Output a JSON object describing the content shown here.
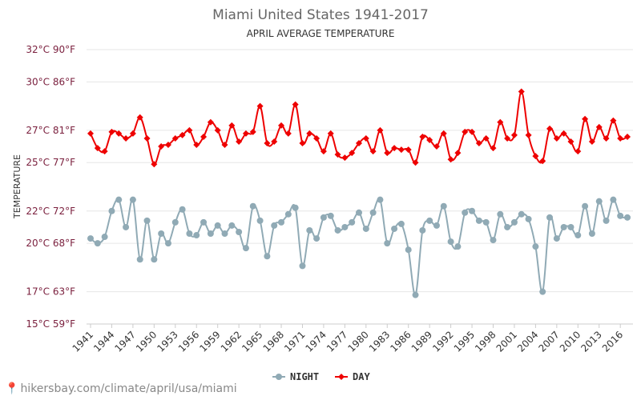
{
  "chart_data": {
    "type": "line",
    "title": "Miami United States 1941-2017",
    "subtitle": "APRIL AVERAGE TEMPERATURE",
    "ylabel": "TEMPERATURE",
    "ylim": [
      15,
      32
    ],
    "yticks": [
      {
        "value": 15,
        "label": "15°C 59°F"
      },
      {
        "value": 17,
        "label": "17°C 63°F"
      },
      {
        "value": 20,
        "label": "20°C 68°F"
      },
      {
        "value": 22,
        "label": "22°C 72°F"
      },
      {
        "value": 25,
        "label": "25°C 77°F"
      },
      {
        "value": 27,
        "label": "27°C 81°F"
      },
      {
        "value": 30,
        "label": "30°C 86°F"
      },
      {
        "value": 32,
        "label": "32°C 90°F"
      }
    ],
    "xlim": [
      1941,
      2017
    ],
    "xticks": [
      1941,
      1944,
      1947,
      1950,
      1953,
      1956,
      1959,
      1962,
      1965,
      1968,
      1971,
      1974,
      1977,
      1980,
      1983,
      1986,
      1989,
      1992,
      1995,
      1998,
      2001,
      2004,
      2007,
      2010,
      2013,
      2016
    ],
    "grid": true,
    "legend_position": "bottom-center",
    "series": [
      {
        "name": "NIGHT",
        "color": "#90aab5",
        "marker": "circle",
        "x": [
          1941,
          1942,
          1943,
          1944,
          1945,
          1946,
          1947,
          1948,
          1949,
          1950,
          1951,
          1952,
          1953,
          1954,
          1955,
          1956,
          1957,
          1958,
          1959,
          1960,
          1961,
          1962,
          1963,
          1964,
          1965,
          1966,
          1967,
          1968,
          1969,
          1970,
          1971,
          1972,
          1973,
          1974,
          1975,
          1976,
          1977,
          1978,
          1979,
          1980,
          1981,
          1982,
          1983,
          1984,
          1985,
          1986,
          1987,
          1988,
          1989,
          1990,
          1991,
          1992,
          1993,
          1994,
          1995,
          1996,
          1997,
          1998,
          1999,
          2000,
          2001,
          2002,
          2003,
          2004,
          2005,
          2006,
          2007,
          2008,
          2009,
          2010,
          2011,
          2012,
          2013,
          2014,
          2015,
          2016,
          2017
        ],
        "values": [
          20.3,
          20.0,
          20.4,
          22.0,
          22.7,
          21.0,
          22.7,
          19.0,
          21.4,
          19.0,
          20.6,
          20.0,
          21.3,
          22.1,
          20.6,
          20.5,
          21.3,
          20.6,
          21.1,
          20.6,
          21.1,
          20.7,
          19.7,
          22.3,
          21.4,
          19.2,
          21.1,
          21.3,
          21.8,
          22.2,
          18.6,
          20.8,
          20.3,
          21.6,
          21.7,
          20.8,
          21.0,
          21.3,
          21.9,
          20.9,
          21.9,
          22.7,
          20.0,
          20.9,
          21.2,
          19.6,
          16.8,
          20.8,
          21.4,
          21.1,
          22.3,
          20.1,
          19.8,
          21.9,
          22.0,
          21.4,
          21.3,
          20.2,
          21.8,
          21.0,
          21.3,
          21.8,
          21.5,
          19.8,
          17.0,
          21.6,
          20.3,
          21.0,
          21.0,
          20.5,
          22.3,
          20.6,
          22.6,
          21.4,
          22.7,
          21.7,
          21.6
        ]
      },
      {
        "name": "DAY",
        "color": "#ee0000",
        "marker": "diamond",
        "x": [
          1941,
          1942,
          1943,
          1944,
          1945,
          1946,
          1947,
          1948,
          1949,
          1950,
          1951,
          1952,
          1953,
          1954,
          1955,
          1956,
          1957,
          1958,
          1959,
          1960,
          1961,
          1962,
          1963,
          1964,
          1965,
          1966,
          1967,
          1968,
          1969,
          1970,
          1971,
          1972,
          1973,
          1974,
          1975,
          1976,
          1977,
          1978,
          1979,
          1980,
          1981,
          1982,
          1983,
          1984,
          1985,
          1986,
          1987,
          1988,
          1989,
          1990,
          1991,
          1992,
          1993,
          1994,
          1995,
          1996,
          1997,
          1998,
          1999,
          2000,
          2001,
          2002,
          2003,
          2004,
          2005,
          2006,
          2007,
          2008,
          2009,
          2010,
          2011,
          2012,
          2013,
          2014,
          2015,
          2016,
          2017
        ],
        "values": [
          26.8,
          25.9,
          25.7,
          26.9,
          26.8,
          26.5,
          26.8,
          27.8,
          26.5,
          24.9,
          26.0,
          26.1,
          26.5,
          26.7,
          27.0,
          26.1,
          26.6,
          27.5,
          27.0,
          26.1,
          27.3,
          26.3,
          26.8,
          26.9,
          28.5,
          26.2,
          26.3,
          27.3,
          26.8,
          28.6,
          26.2,
          26.8,
          26.5,
          25.7,
          26.8,
          25.5,
          25.3,
          25.6,
          26.2,
          26.5,
          25.7,
          27.0,
          25.6,
          25.9,
          25.8,
          25.8,
          25.0,
          26.6,
          26.4,
          26.0,
          26.8,
          25.2,
          25.6,
          26.9,
          26.9,
          26.2,
          26.5,
          25.9,
          27.5,
          26.5,
          26.7,
          29.4,
          26.7,
          25.4,
          25.1,
          27.1,
          26.5,
          26.8,
          26.3,
          25.7,
          27.7,
          26.3,
          27.2,
          26.5,
          27.6,
          26.5,
          26.6
        ]
      }
    ]
  },
  "footer": {
    "pin_icon": "map-pin-icon",
    "text": "hikersbay.com/climate/april/usa/miami"
  }
}
